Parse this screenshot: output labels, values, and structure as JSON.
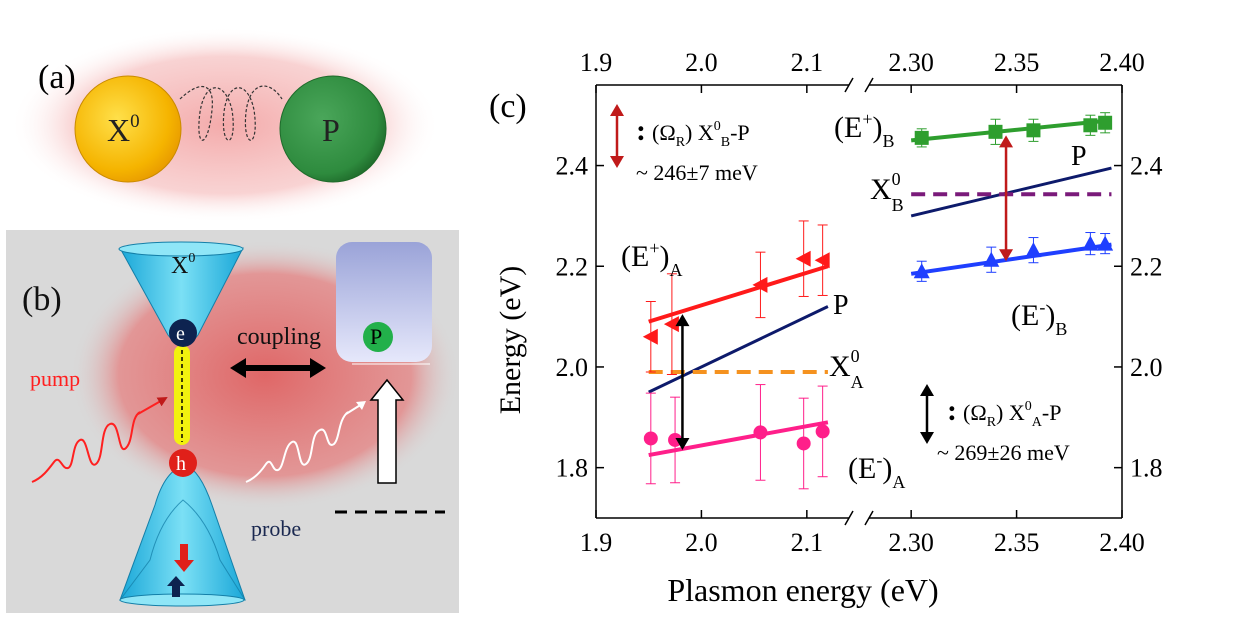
{
  "panel_a": {
    "label": "(a)",
    "exciton_label": "X",
    "exciton_sup": "0",
    "plasmon_label": "P",
    "colors": {
      "exciton": "#f5b400",
      "plasmon": "#2e8b3e",
      "glow": "#f6c0c0"
    }
  },
  "panel_b": {
    "label": "(b)",
    "exciton_label": "X",
    "exciton_sup": "0",
    "electron_label": "e",
    "hole_label": "h",
    "coupling_label": "coupling",
    "plasmon_label": "P",
    "pump_label": "pump",
    "probe_label": "probe",
    "colors": {
      "background": "#d9d9d9",
      "cone": "#30c0e0",
      "pump": "#ff2020",
      "glow": "#e36a6a"
    }
  },
  "panel_c": {
    "label": "(c)",
    "y_axis_label": "Energy (eV)",
    "x_axis_label": "Plasmon energy (eV)",
    "annotation_b_rabi": "(Ω",
    "annotation_b_rabi_sub": "R",
    "annotation_b_rabi_close": ") X",
    "annotation_b_x0_sup": "0",
    "annotation_b_x0_sub": "B",
    "annotation_b_tail": "-P",
    "annotation_b_value": "~ 246±7 meV",
    "annotation_a_rabi": "(Ω",
    "annotation_a_rabi_sub": "R",
    "annotation_a_rabi_close": ") X",
    "annotation_a_x0_sup": "0",
    "annotation_a_x0_sub": "A",
    "annotation_a_tail": "-P",
    "annotation_a_value": "~ 269±26 meV",
    "label_eplus_a": "(E",
    "label_eplus_a_sup": "+",
    "label_eplus_a_sub": "A",
    "label_eminus_a": "(E",
    "label_eminus_a_sup": "-",
    "label_eminus_a_sub": "A",
    "label_eplus_b": "(E",
    "label_eplus_b_sup": "+",
    "label_eplus_b_sub": "B",
    "label_eminus_b": "(E",
    "label_eminus_b_sup": "-",
    "label_eminus_b_sub": "B",
    "label_p_a": "P",
    "label_p_b": "P",
    "label_x0_a": "X",
    "label_x0_a_sup": "0",
    "label_x0_a_sub": "A",
    "label_x0_b": "X",
    "label_x0_b_sup": "0",
    "label_x0_b_sub": "B",
    "colon": ":"
  },
  "chart_data": {
    "type": "scatter",
    "title": "",
    "xlabel": "Plasmon energy (eV)",
    "ylabel": "Energy (eV)",
    "ylim": [
      1.7,
      2.56
    ],
    "yticks": [
      1.8,
      2.0,
      2.2,
      2.4
    ],
    "x_break": true,
    "segments": [
      {
        "name": "A",
        "xlim": [
          1.9,
          2.14
        ],
        "xticks": [
          1.9,
          2.0,
          2.1
        ]
      },
      {
        "name": "B",
        "xlim": [
          2.28,
          2.4
        ],
        "xticks": [
          2.3,
          2.35,
          2.4
        ]
      }
    ],
    "series": [
      {
        "name": "(E+)A data",
        "segment": "A",
        "marker": "triangle-left",
        "color": "#ff1a1a",
        "x": [
          1.952,
          1.972,
          2.056,
          2.097,
          2.115
        ],
        "y": [
          2.06,
          2.085,
          2.163,
          2.215,
          2.212
        ],
        "err": [
          0.07,
          0.1,
          0.065,
          0.075,
          0.07
        ]
      },
      {
        "name": "(E-)A data",
        "segment": "A",
        "marker": "circle",
        "color": "#ff1f8a",
        "x": [
          1.952,
          1.975,
          2.056,
          2.097,
          2.115
        ],
        "y": [
          1.858,
          1.855,
          1.87,
          1.848,
          1.872
        ],
        "err": [
          0.09,
          0.085,
          0.095,
          0.09,
          0.09
        ]
      },
      {
        "name": "(E+)B data",
        "segment": "B",
        "marker": "square",
        "color": "#2e9e2e",
        "x": [
          2.305,
          2.34,
          2.358,
          2.385,
          2.392
        ],
        "y": [
          2.455,
          2.467,
          2.47,
          2.48,
          2.485
        ],
        "err": [
          0.018,
          0.025,
          0.022,
          0.02,
          0.02
        ]
      },
      {
        "name": "(E-)B data",
        "segment": "B",
        "marker": "triangle-up",
        "color": "#1f3fff",
        "x": [
          2.305,
          2.338,
          2.358,
          2.385,
          2.392
        ],
        "y": [
          2.19,
          2.213,
          2.232,
          2.245,
          2.245
        ],
        "err": [
          0.02,
          0.025,
          0.025,
          0.022,
          0.02
        ]
      }
    ],
    "lines": [
      {
        "name": "(E+)A fit",
        "segment": "A",
        "color": "#ff1a1a",
        "width": 4,
        "x": [
          1.95,
          2.12
        ],
        "y": [
          2.09,
          2.2
        ]
      },
      {
        "name": "P (A)",
        "segment": "A",
        "color": "#0d1a6b",
        "width": 3,
        "x": [
          1.95,
          2.12
        ],
        "y": [
          1.95,
          2.12
        ]
      },
      {
        "name": "X0A",
        "segment": "A",
        "color": "#f5921f",
        "width": 4,
        "dash": true,
        "x": [
          1.95,
          2.12
        ],
        "y": [
          1.99,
          1.99
        ]
      },
      {
        "name": "(E-)A fit",
        "segment": "A",
        "color": "#ff1f8a",
        "width": 4,
        "x": [
          1.95,
          2.12
        ],
        "y": [
          1.825,
          1.89
        ]
      },
      {
        "name": "(E+)B fit",
        "segment": "B",
        "color": "#2e9e2e",
        "width": 4,
        "x": [
          2.3,
          2.395
        ],
        "y": [
          2.45,
          2.49
        ]
      },
      {
        "name": "P (B)",
        "segment": "B",
        "color": "#0d1a6b",
        "width": 3,
        "x": [
          2.3,
          2.395
        ],
        "y": [
          2.3,
          2.395
        ]
      },
      {
        "name": "X0B",
        "segment": "B",
        "color": "#7a1a7a",
        "width": 4,
        "dash": true,
        "x": [
          2.3,
          2.395
        ],
        "y": [
          2.343,
          2.343
        ]
      },
      {
        "name": "(E-)B fit",
        "segment": "B",
        "color": "#1f3fff",
        "width": 4,
        "x": [
          2.3,
          2.395
        ],
        "y": [
          2.185,
          2.243
        ]
      }
    ],
    "splitting_arrows": [
      {
        "name": "rabi-A",
        "segment": "A",
        "x": 1.982,
        "y1": 1.835,
        "y2": 2.105,
        "color": "#000000"
      },
      {
        "name": "rabi-B",
        "segment": "B",
        "x": 2.345,
        "y1": 2.21,
        "y2": 2.46,
        "color": "#c01a1a"
      }
    ]
  }
}
